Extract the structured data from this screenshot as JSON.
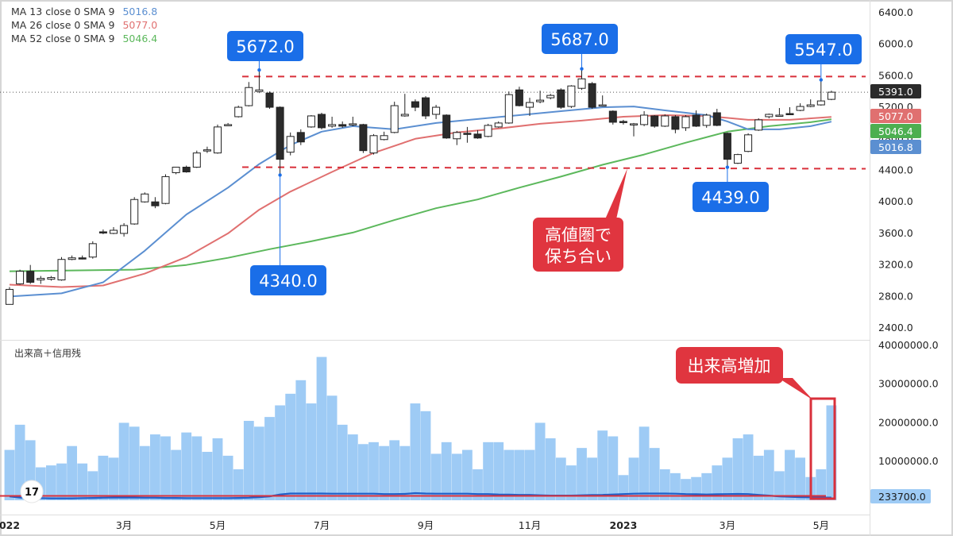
{
  "legend": {
    "ma": [
      {
        "label": "MA 13 close 0 SMA 9",
        "value": "5016.8",
        "color": "#5b8fd1"
      },
      {
        "label": "MA 26 close 0 SMA 9",
        "value": "5077.0",
        "color": "#e07070"
      },
      {
        "label": "MA 52 close 0 SMA 9",
        "value": "5046.4",
        "color": "#5cb85c"
      }
    ],
    "volume_title": "出来高＋信用残"
  },
  "chart_data": {
    "type": "candlestick",
    "price_axis": {
      "ticks": [
        "6400.0",
        "6000.0",
        "5600.0",
        "5200.0",
        "4800.0",
        "4400.0",
        "4000.0",
        "3600.0",
        "3200.0",
        "2800.0",
        "2400.0"
      ],
      "ylim": [
        2250,
        6560
      ]
    },
    "volume_axis": {
      "ticks": [
        "40000000.0",
        "30000000.0",
        "20000000.0",
        "10000000.0"
      ],
      "ylim": [
        0,
        41000000
      ]
    },
    "x_axis_labels": [
      {
        "i": 0,
        "label": "022"
      },
      {
        "i": 11,
        "label": "3月"
      },
      {
        "i": 20,
        "label": "5月"
      },
      {
        "i": 30,
        "label": "7月"
      },
      {
        "i": 40,
        "label": "9月"
      },
      {
        "i": 50,
        "label": "11月"
      },
      {
        "i": 59,
        "label": "2023"
      },
      {
        "i": 69,
        "label": "3月"
      },
      {
        "i": 78,
        "label": "5月"
      }
    ],
    "candles": [
      {
        "o": 2700,
        "h": 2920,
        "l": 2700,
        "c": 2890
      },
      {
        "o": 2960,
        "h": 3140,
        "l": 2950,
        "c": 3120
      },
      {
        "o": 3120,
        "h": 3200,
        "l": 2960,
        "c": 2980
      },
      {
        "o": 3010,
        "h": 3060,
        "l": 2960,
        "c": 3030
      },
      {
        "o": 3020,
        "h": 3060,
        "l": 3000,
        "c": 3040
      },
      {
        "o": 3010,
        "h": 3300,
        "l": 3000,
        "c": 3270
      },
      {
        "o": 3270,
        "h": 3320,
        "l": 3260,
        "c": 3290
      },
      {
        "o": 3290,
        "h": 3320,
        "l": 3270,
        "c": 3280
      },
      {
        "o": 3300,
        "h": 3500,
        "l": 3280,
        "c": 3470
      },
      {
        "o": 3620,
        "h": 3650,
        "l": 3590,
        "c": 3610
      },
      {
        "o": 3600,
        "h": 3680,
        "l": 3590,
        "c": 3640
      },
      {
        "o": 3600,
        "h": 3730,
        "l": 3560,
        "c": 3700
      },
      {
        "o": 3720,
        "h": 4060,
        "l": 3710,
        "c": 4030
      },
      {
        "o": 4000,
        "h": 4120,
        "l": 3990,
        "c": 4100
      },
      {
        "o": 4000,
        "h": 4060,
        "l": 3920,
        "c": 3950
      },
      {
        "o": 3980,
        "h": 4350,
        "l": 3970,
        "c": 4320
      },
      {
        "o": 4370,
        "h": 4440,
        "l": 4350,
        "c": 4440
      },
      {
        "o": 4440,
        "h": 4460,
        "l": 4370,
        "c": 4380
      },
      {
        "o": 4440,
        "h": 4650,
        "l": 4430,
        "c": 4620
      },
      {
        "o": 4660,
        "h": 4700,
        "l": 4620,
        "c": 4660
      },
      {
        "o": 4620,
        "h": 4980,
        "l": 4610,
        "c": 4950
      },
      {
        "o": 4980,
        "h": 5000,
        "l": 4970,
        "c": 4980
      },
      {
        "o": 5080,
        "h": 5220,
        "l": 5070,
        "c": 5200
      },
      {
        "o": 5220,
        "h": 5520,
        "l": 5210,
        "c": 5450
      },
      {
        "o": 5400,
        "h": 5672,
        "l": 5380,
        "c": 5420
      },
      {
        "o": 5380,
        "h": 5400,
        "l": 5180,
        "c": 5200
      },
      {
        "o": 5200,
        "h": 5210,
        "l": 4340,
        "c": 4540
      },
      {
        "o": 4630,
        "h": 4880,
        "l": 4590,
        "c": 4830
      },
      {
        "o": 4880,
        "h": 4920,
        "l": 4720,
        "c": 4760
      },
      {
        "o": 4950,
        "h": 5100,
        "l": 4940,
        "c": 5090
      },
      {
        "o": 5110,
        "h": 5130,
        "l": 4920,
        "c": 4940
      },
      {
        "o": 4960,
        "h": 5080,
        "l": 4940,
        "c": 4980
      },
      {
        "o": 4980,
        "h": 5020,
        "l": 4940,
        "c": 4960
      },
      {
        "o": 4980,
        "h": 5080,
        "l": 4960,
        "c": 4990
      },
      {
        "o": 4980,
        "h": 4990,
        "l": 4620,
        "c": 4650
      },
      {
        "o": 4620,
        "h": 4860,
        "l": 4600,
        "c": 4840
      },
      {
        "o": 4790,
        "h": 4890,
        "l": 4780,
        "c": 4840
      },
      {
        "o": 4880,
        "h": 5270,
        "l": 4870,
        "c": 5220
      },
      {
        "o": 5090,
        "h": 5370,
        "l": 5080,
        "c": 5110
      },
      {
        "o": 5270,
        "h": 5300,
        "l": 5150,
        "c": 5200
      },
      {
        "o": 5320,
        "h": 5340,
        "l": 5050,
        "c": 5090
      },
      {
        "o": 5110,
        "h": 5230,
        "l": 5050,
        "c": 5200
      },
      {
        "o": 5100,
        "h": 5110,
        "l": 4800,
        "c": 4810
      },
      {
        "o": 4800,
        "h": 4900,
        "l": 4720,
        "c": 4880
      },
      {
        "o": 4870,
        "h": 4950,
        "l": 4750,
        "c": 4860
      },
      {
        "o": 4860,
        "h": 4910,
        "l": 4800,
        "c": 4810
      },
      {
        "o": 4830,
        "h": 4990,
        "l": 4820,
        "c": 4970
      },
      {
        "o": 4950,
        "h": 5020,
        "l": 4940,
        "c": 5000
      },
      {
        "o": 5000,
        "h": 5400,
        "l": 4990,
        "c": 5360
      },
      {
        "o": 5420,
        "h": 5460,
        "l": 5210,
        "c": 5220
      },
      {
        "o": 5200,
        "h": 5320,
        "l": 5090,
        "c": 5260
      },
      {
        "o": 5270,
        "h": 5410,
        "l": 5250,
        "c": 5290
      },
      {
        "o": 5320,
        "h": 5370,
        "l": 5300,
        "c": 5350
      },
      {
        "o": 5420,
        "h": 5440,
        "l": 5180,
        "c": 5200
      },
      {
        "o": 5210,
        "h": 5480,
        "l": 5190,
        "c": 5470
      },
      {
        "o": 5440,
        "h": 5687,
        "l": 5420,
        "c": 5560
      },
      {
        "o": 5500,
        "h": 5520,
        "l": 5180,
        "c": 5200
      },
      {
        "o": 5220,
        "h": 5350,
        "l": 5210,
        "c": 5230
      },
      {
        "o": 5150,
        "h": 5160,
        "l": 4980,
        "c": 5010
      },
      {
        "o": 5020,
        "h": 5040,
        "l": 4980,
        "c": 5010
      },
      {
        "o": 4990,
        "h": 5000,
        "l": 4830,
        "c": 4990
      },
      {
        "o": 4980,
        "h": 5150,
        "l": 4960,
        "c": 5100
      },
      {
        "o": 5090,
        "h": 5100,
        "l": 4940,
        "c": 4960
      },
      {
        "o": 4960,
        "h": 5110,
        "l": 4950,
        "c": 5090
      },
      {
        "o": 5080,
        "h": 5100,
        "l": 4870,
        "c": 4920
      },
      {
        "o": 4940,
        "h": 5100,
        "l": 4900,
        "c": 5080
      },
      {
        "o": 5100,
        "h": 5160,
        "l": 4950,
        "c": 4960
      },
      {
        "o": 4970,
        "h": 5120,
        "l": 4940,
        "c": 5100
      },
      {
        "o": 5130,
        "h": 5180,
        "l": 4960,
        "c": 4970
      },
      {
        "o": 4870,
        "h": 4880,
        "l": 4439,
        "c": 4540
      },
      {
        "o": 4490,
        "h": 4610,
        "l": 4480,
        "c": 4600
      },
      {
        "o": 4640,
        "h": 4870,
        "l": 4630,
        "c": 4850
      },
      {
        "o": 4910,
        "h": 5060,
        "l": 4900,
        "c": 5040
      },
      {
        "o": 5080,
        "h": 5120,
        "l": 5060,
        "c": 5110
      },
      {
        "o": 5100,
        "h": 5190,
        "l": 5080,
        "c": 5100
      },
      {
        "o": 5120,
        "h": 5200,
        "l": 5100,
        "c": 5110
      },
      {
        "o": 5160,
        "h": 5250,
        "l": 5150,
        "c": 5210
      },
      {
        "o": 5210,
        "h": 5300,
        "l": 5200,
        "c": 5230
      },
      {
        "o": 5230,
        "h": 5547,
        "l": 5220,
        "c": 5280
      },
      {
        "o": 5300,
        "h": 5410,
        "l": 5290,
        "c": 5391
      }
    ],
    "volume": [
      13,
      19.5,
      15.5,
      8.5,
      9,
      9.5,
      14,
      9.5,
      7.5,
      11.5,
      11,
      20,
      19,
      14,
      17,
      16.5,
      13,
      17.5,
      16.5,
      12.5,
      16,
      11.5,
      8,
      20.5,
      19,
      21.5,
      24.5,
      27.5,
      31,
      25,
      37,
      27,
      19.5,
      17,
      14.5,
      15,
      14,
      15.5,
      14,
      25,
      23,
      12,
      15,
      12,
      13,
      8,
      15,
      15,
      13,
      13,
      13,
      20,
      16,
      11,
      9,
      13.5,
      11,
      18,
      16.5,
      6.5,
      11,
      19,
      13.5,
      8,
      7,
      5.5,
      6,
      7,
      9,
      11,
      16,
      17,
      11.5,
      13,
      7.5,
      13,
      11,
      6,
      8,
      24.5
    ],
    "volume_line": [
      1.0,
      0.7,
      0.6,
      0.55,
      0.5,
      0.5,
      0.5,
      0.55,
      0.6,
      0.65,
      0.7,
      0.7,
      0.7,
      0.65,
      0.65,
      0.6,
      0.6,
      0.55,
      0.55,
      0.55,
      0.55,
      0.55,
      0.6,
      0.65,
      0.8,
      1.0,
      1.5,
      1.75,
      1.75,
      1.75,
      1.75,
      1.7,
      1.7,
      1.7,
      1.7,
      1.7,
      1.6,
      1.6,
      1.65,
      1.85,
      1.75,
      1.7,
      1.7,
      1.7,
      1.7,
      1.6,
      1.6,
      1.5,
      1.45,
      1.4,
      1.4,
      1.3,
      1.2,
      1.2,
      1.2,
      1.3,
      1.35,
      1.4,
      1.5,
      1.6,
      1.7,
      1.75,
      1.75,
      1.75,
      1.7,
      1.6,
      1.55,
      1.5,
      1.55,
      1.6,
      1.65,
      1.6,
      1.4,
      1.2,
      1.0,
      0.9,
      0.8,
      0.75,
      0.7,
      0.7
    ],
    "ma13": [
      {
        "i": 0,
        "v": 2800
      },
      {
        "i": 5,
        "v": 2840
      },
      {
        "i": 9,
        "v": 2980
      },
      {
        "i": 13,
        "v": 3380
      },
      {
        "i": 17,
        "v": 3840
      },
      {
        "i": 21,
        "v": 4180
      },
      {
        "i": 24,
        "v": 4480
      },
      {
        "i": 27,
        "v": 4720
      },
      {
        "i": 30,
        "v": 4890
      },
      {
        "i": 33,
        "v": 4960
      },
      {
        "i": 37,
        "v": 4920
      },
      {
        "i": 41,
        "v": 5000
      },
      {
        "i": 45,
        "v": 5050
      },
      {
        "i": 49,
        "v": 5100
      },
      {
        "i": 53,
        "v": 5150
      },
      {
        "i": 57,
        "v": 5200
      },
      {
        "i": 60,
        "v": 5210
      },
      {
        "i": 63,
        "v": 5160
      },
      {
        "i": 67,
        "v": 5100
      },
      {
        "i": 69,
        "v": 5020
      },
      {
        "i": 71,
        "v": 4920
      },
      {
        "i": 74,
        "v": 4920
      },
      {
        "i": 77,
        "v": 4960
      },
      {
        "i": 79,
        "v": 5017
      }
    ],
    "ma26": [
      {
        "i": 0,
        "v": 2950
      },
      {
        "i": 5,
        "v": 2920
      },
      {
        "i": 9,
        "v": 2940
      },
      {
        "i": 13,
        "v": 3090
      },
      {
        "i": 17,
        "v": 3300
      },
      {
        "i": 21,
        "v": 3600
      },
      {
        "i": 24,
        "v": 3900
      },
      {
        "i": 27,
        "v": 4130
      },
      {
        "i": 31,
        "v": 4380
      },
      {
        "i": 35,
        "v": 4620
      },
      {
        "i": 39,
        "v": 4800
      },
      {
        "i": 43,
        "v": 4880
      },
      {
        "i": 47,
        "v": 4930
      },
      {
        "i": 51,
        "v": 4990
      },
      {
        "i": 55,
        "v": 5030
      },
      {
        "i": 59,
        "v": 5080
      },
      {
        "i": 63,
        "v": 5100
      },
      {
        "i": 67,
        "v": 5090
      },
      {
        "i": 71,
        "v": 5040
      },
      {
        "i": 75,
        "v": 5040
      },
      {
        "i": 79,
        "v": 5077
      }
    ],
    "ma52": [
      {
        "i": 0,
        "v": 3120
      },
      {
        "i": 6,
        "v": 3130
      },
      {
        "i": 12,
        "v": 3140
      },
      {
        "i": 17,
        "v": 3200
      },
      {
        "i": 21,
        "v": 3290
      },
      {
        "i": 25,
        "v": 3400
      },
      {
        "i": 29,
        "v": 3500
      },
      {
        "i": 33,
        "v": 3610
      },
      {
        "i": 37,
        "v": 3770
      },
      {
        "i": 41,
        "v": 3920
      },
      {
        "i": 45,
        "v": 4030
      },
      {
        "i": 49,
        "v": 4180
      },
      {
        "i": 53,
        "v": 4320
      },
      {
        "i": 57,
        "v": 4470
      },
      {
        "i": 61,
        "v": 4600
      },
      {
        "i": 65,
        "v": 4750
      },
      {
        "i": 69,
        "v": 4890
      },
      {
        "i": 73,
        "v": 4960
      },
      {
        "i": 77,
        "v": 5010
      },
      {
        "i": 79,
        "v": 5046
      }
    ],
    "resistance": 5590,
    "support": 4440,
    "current_price": 5391,
    "price_tags": [
      {
        "text": "5391.0",
        "value": 5391,
        "bg": "#2b2b2b"
      },
      {
        "text": "5077.0",
        "value": 5077,
        "bg": "#e07070"
      },
      {
        "text": "5046.4",
        "value": 5046.4,
        "bg": "#4caf50"
      },
      {
        "text": "5016.8",
        "value": 5016.8,
        "bg": "#5b8fd1"
      }
    ],
    "volume_tag": {
      "text": "233700.0",
      "bg": "#9ecbf5"
    },
    "callouts": [
      {
        "text": "5672.0",
        "i": 24,
        "value": 5672,
        "dir": "up"
      },
      {
        "text": "5687.0",
        "i": 55,
        "value": 5687,
        "dir": "up"
      },
      {
        "text": "5547.0",
        "i": 78,
        "value": 5547,
        "dir": "up"
      },
      {
        "text": "4340.0",
        "i": 26,
        "value": 4340,
        "dir": "down"
      },
      {
        "text": "4439.0",
        "i": 69,
        "value": 4439,
        "dir": "down"
      }
    ],
    "notes": [
      {
        "text": "高値圏で\n保ち合い"
      },
      {
        "text": "出来高増加"
      }
    ]
  }
}
